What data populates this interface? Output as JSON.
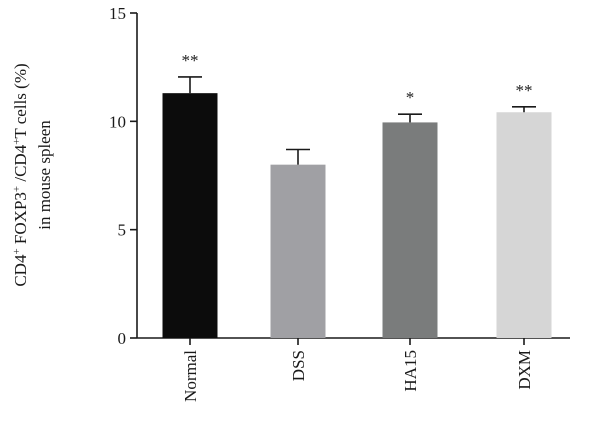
{
  "chart_data": {
    "type": "bar",
    "categories": [
      "Normal",
      "DSS",
      "HA15",
      "DXM"
    ],
    "values": [
      11.3,
      8.0,
      9.95,
      10.42
    ],
    "errors": [
      0.75,
      0.7,
      0.38,
      0.25
    ],
    "significance": [
      "**",
      "",
      "*",
      "**"
    ],
    "colors": [
      "#0c0c0c",
      "#a0a0a4",
      "#7a7c7c",
      "#d6d6d6"
    ],
    "ylabel_line1": {
      "parts": [
        {
          "t": "CD4",
          "sup": false
        },
        {
          "t": "+",
          "sup": true
        },
        {
          "t": " FOXP3",
          "sup": false
        },
        {
          "t": "+",
          "sup": true
        },
        {
          "t": " /CD4",
          "sup": false
        },
        {
          "t": "+",
          "sup": true
        },
        {
          "t": "T cells (%)",
          "sup": false
        }
      ]
    },
    "ylabel_line2": "in mouse spleen",
    "ylim": [
      0,
      15
    ],
    "yticks": [
      0,
      5,
      10,
      15
    ],
    "xlabel": "",
    "title": "",
    "grid": false
  }
}
